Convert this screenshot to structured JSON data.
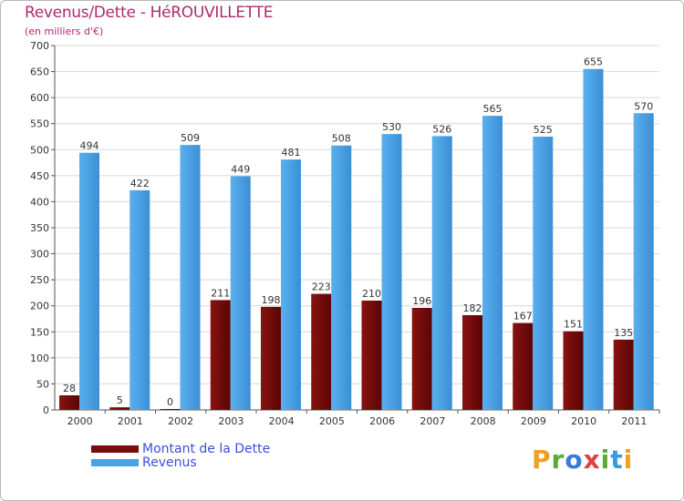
{
  "header": {
    "title": "Revenus/Dette - HéROUVILLETTE",
    "subtitle": "(en milliers d'€)"
  },
  "legend": {
    "items": [
      {
        "label": "Montant de la Dette",
        "color": "#7a0b0b"
      },
      {
        "label": "Revenus",
        "color": "#4aa3e8"
      }
    ]
  },
  "logo": {
    "letters": [
      {
        "ch": "P",
        "color": "#f0a020"
      },
      {
        "ch": "r",
        "color": "#5aaa3a"
      },
      {
        "ch": "o",
        "color": "#3a7ad8"
      },
      {
        "ch": "x",
        "color": "#e04040"
      },
      {
        "ch": "i",
        "color": "#5aaa3a"
      },
      {
        "ch": "t",
        "color": "#3a9ad8"
      },
      {
        "ch": "i",
        "color": "#f0a020"
      }
    ]
  },
  "chart_data": {
    "type": "bar",
    "title": "Revenus/Dette - HéROUVILLETTE",
    "ylabel": "(en milliers d'€)",
    "xlabel": "",
    "categories": [
      "2000",
      "2001",
      "2002",
      "2003",
      "2004",
      "2005",
      "2006",
      "2007",
      "2008",
      "2009",
      "2010",
      "2011"
    ],
    "series": [
      {
        "name": "Montant de la Dette",
        "color": "#7a0b0b",
        "values": [
          28,
          5,
          0,
          211,
          198,
          223,
          210,
          196,
          182,
          167,
          151,
          135
        ]
      },
      {
        "name": "Revenus",
        "color": "#4aa3e8",
        "values": [
          494,
          422,
          509,
          449,
          481,
          508,
          530,
          526,
          565,
          525,
          655,
          570
        ]
      }
    ],
    "ylim": [
      0,
      700
    ],
    "yticks": [
      0,
      50,
      100,
      150,
      200,
      250,
      300,
      350,
      400,
      450,
      500,
      550,
      600,
      650,
      700
    ],
    "grid": true,
    "legend_position": "bottom-left"
  }
}
